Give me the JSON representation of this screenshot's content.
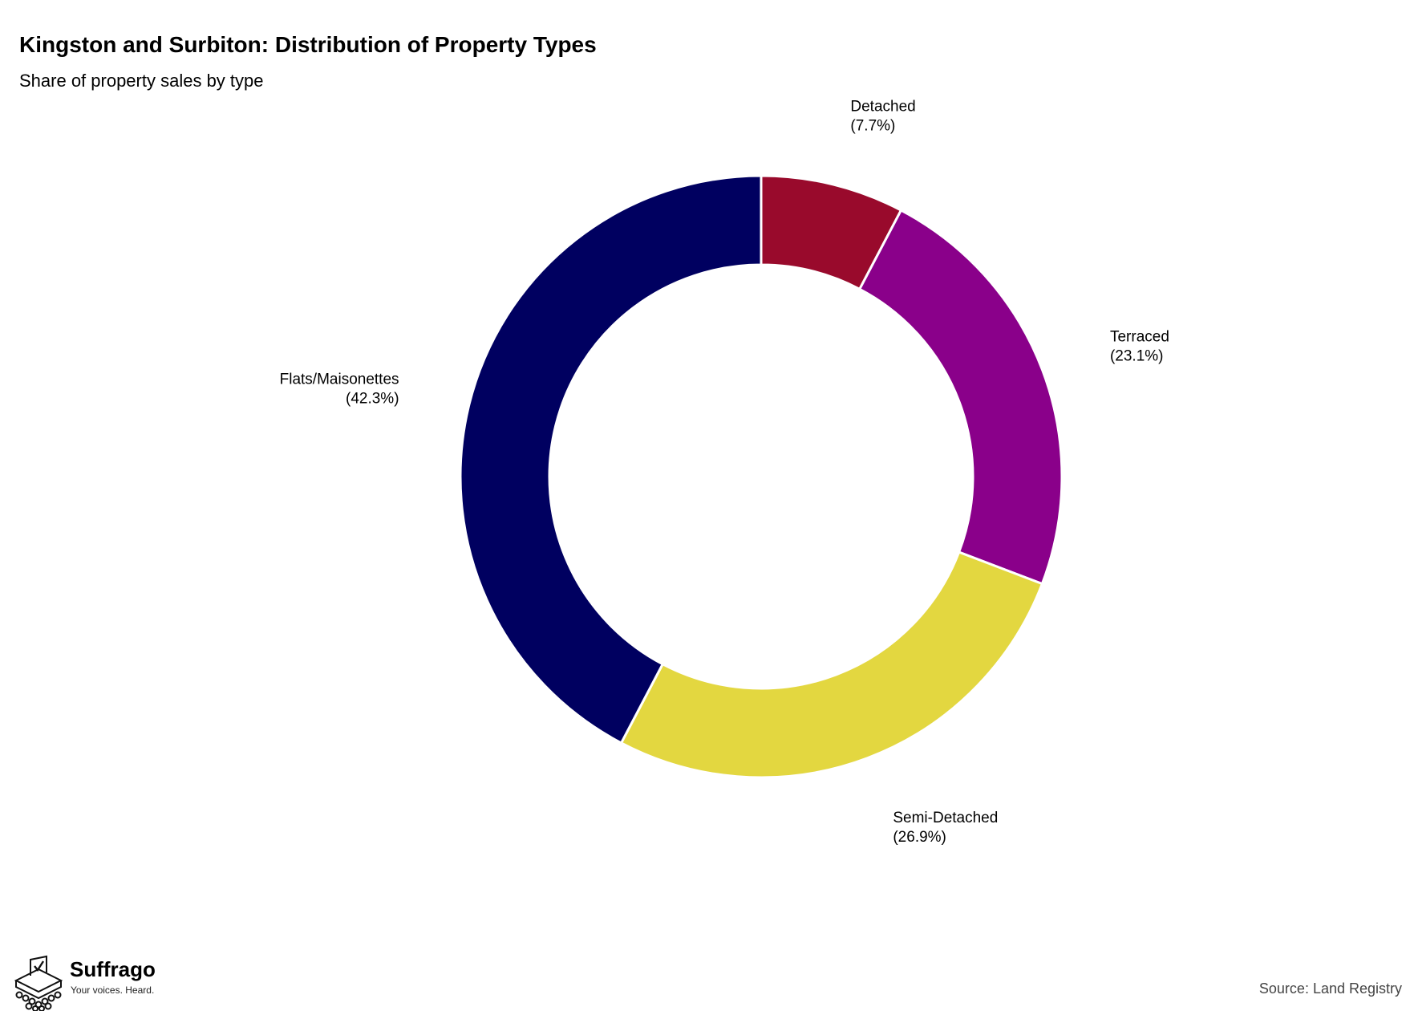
{
  "header": {
    "title": "Kingston and Surbiton: Distribution of Property Types",
    "subtitle": "Share of property sales by type"
  },
  "chart_data": {
    "type": "pie",
    "style": "donut",
    "title": "Kingston and Surbiton: Distribution of Property Types",
    "subtitle": "Share of property sales by type",
    "slices": [
      {
        "label": "Detached",
        "value": 7.7,
        "display": "(7.7%)",
        "color": "#990a2c"
      },
      {
        "label": "Terraced",
        "value": 23.1,
        "display": "(23.1%)",
        "color": "#8a008a"
      },
      {
        "label": "Semi-Detached",
        "value": 26.9,
        "display": "(26.9%)",
        "color": "#e3d740"
      },
      {
        "label": "Flats/Maisonettes",
        "value": 42.3,
        "display": "(42.3%)",
        "color": "#000060"
      }
    ],
    "start_angle": "12 o'clock",
    "direction": "clockwise"
  },
  "branding": {
    "name": "Suffrago",
    "tagline": "Your voices. Heard."
  },
  "source": "Source: Land Registry"
}
